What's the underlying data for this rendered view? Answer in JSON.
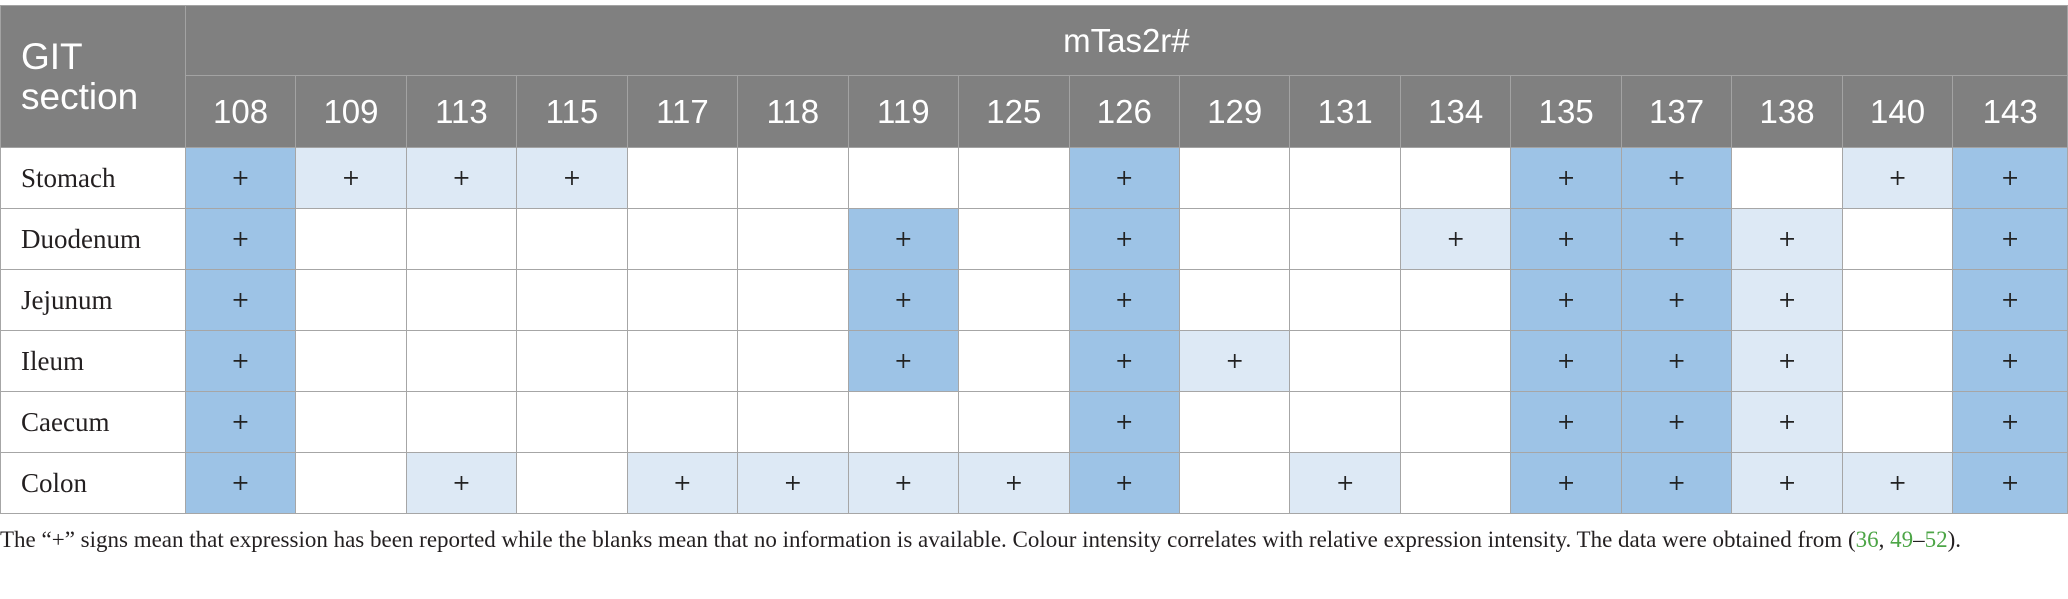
{
  "table": {
    "section_header": "GIT section",
    "group_header": "mTas2r#",
    "genes": [
      "108",
      "109",
      "113",
      "115",
      "117",
      "118",
      "119",
      "125",
      "126",
      "129",
      "131",
      "134",
      "135",
      "137",
      "138",
      "140",
      "143"
    ],
    "legend_colors": {
      "none": "#ffffff",
      "light": "#dde9f5",
      "strong": "#9dc3e6",
      "header": "#808080"
    },
    "rows": [
      {
        "section": "Stomach",
        "cells": [
          {
            "mark": "+",
            "level": 2
          },
          {
            "mark": "+",
            "level": 1
          },
          {
            "mark": "+",
            "level": 1
          },
          {
            "mark": "+",
            "level": 1
          },
          {
            "mark": "",
            "level": 0
          },
          {
            "mark": "",
            "level": 0
          },
          {
            "mark": "",
            "level": 0
          },
          {
            "mark": "",
            "level": 0
          },
          {
            "mark": "+",
            "level": 2
          },
          {
            "mark": "",
            "level": 0
          },
          {
            "mark": "",
            "level": 0
          },
          {
            "mark": "",
            "level": 0
          },
          {
            "mark": "+",
            "level": 2
          },
          {
            "mark": "+",
            "level": 2
          },
          {
            "mark": "",
            "level": 0
          },
          {
            "mark": "+",
            "level": 1
          },
          {
            "mark": "+",
            "level": 2
          }
        ]
      },
      {
        "section": "Duodenum",
        "cells": [
          {
            "mark": "+",
            "level": 2
          },
          {
            "mark": "",
            "level": 0
          },
          {
            "mark": "",
            "level": 0
          },
          {
            "mark": "",
            "level": 0
          },
          {
            "mark": "",
            "level": 0
          },
          {
            "mark": "",
            "level": 0
          },
          {
            "mark": "+",
            "level": 2
          },
          {
            "mark": "",
            "level": 0
          },
          {
            "mark": "+",
            "level": 2
          },
          {
            "mark": "",
            "level": 0
          },
          {
            "mark": "",
            "level": 0
          },
          {
            "mark": "+",
            "level": 1
          },
          {
            "mark": "+",
            "level": 2
          },
          {
            "mark": "+",
            "level": 2
          },
          {
            "mark": "+",
            "level": 1
          },
          {
            "mark": "",
            "level": 0
          },
          {
            "mark": "+",
            "level": 2
          }
        ]
      },
      {
        "section": "Jejunum",
        "cells": [
          {
            "mark": "+",
            "level": 2
          },
          {
            "mark": "",
            "level": 0
          },
          {
            "mark": "",
            "level": 0
          },
          {
            "mark": "",
            "level": 0
          },
          {
            "mark": "",
            "level": 0
          },
          {
            "mark": "",
            "level": 0
          },
          {
            "mark": "+",
            "level": 2
          },
          {
            "mark": "",
            "level": 0
          },
          {
            "mark": "+",
            "level": 2
          },
          {
            "mark": "",
            "level": 0
          },
          {
            "mark": "",
            "level": 0
          },
          {
            "mark": "",
            "level": 0
          },
          {
            "mark": "+",
            "level": 2
          },
          {
            "mark": "+",
            "level": 2
          },
          {
            "mark": "+",
            "level": 1
          },
          {
            "mark": "",
            "level": 0
          },
          {
            "mark": "+",
            "level": 2
          }
        ]
      },
      {
        "section": "Ileum",
        "cells": [
          {
            "mark": "+",
            "level": 2
          },
          {
            "mark": "",
            "level": 0
          },
          {
            "mark": "",
            "level": 0
          },
          {
            "mark": "",
            "level": 0
          },
          {
            "mark": "",
            "level": 0
          },
          {
            "mark": "",
            "level": 0
          },
          {
            "mark": "+",
            "level": 2
          },
          {
            "mark": "",
            "level": 0
          },
          {
            "mark": "+",
            "level": 2
          },
          {
            "mark": "+",
            "level": 1
          },
          {
            "mark": "",
            "level": 0
          },
          {
            "mark": "",
            "level": 0
          },
          {
            "mark": "+",
            "level": 2
          },
          {
            "mark": "+",
            "level": 2
          },
          {
            "mark": "+",
            "level": 1
          },
          {
            "mark": "",
            "level": 0
          },
          {
            "mark": "+",
            "level": 2
          }
        ]
      },
      {
        "section": "Caecum",
        "cells": [
          {
            "mark": "+",
            "level": 2
          },
          {
            "mark": "",
            "level": 0
          },
          {
            "mark": "",
            "level": 0
          },
          {
            "mark": "",
            "level": 0
          },
          {
            "mark": "",
            "level": 0
          },
          {
            "mark": "",
            "level": 0
          },
          {
            "mark": "",
            "level": 0
          },
          {
            "mark": "",
            "level": 0
          },
          {
            "mark": "+",
            "level": 2
          },
          {
            "mark": "",
            "level": 0
          },
          {
            "mark": "",
            "level": 0
          },
          {
            "mark": "",
            "level": 0
          },
          {
            "mark": "+",
            "level": 2
          },
          {
            "mark": "+",
            "level": 2
          },
          {
            "mark": "+",
            "level": 1
          },
          {
            "mark": "",
            "level": 0
          },
          {
            "mark": "+",
            "level": 2
          }
        ]
      },
      {
        "section": "Colon",
        "cells": [
          {
            "mark": "+",
            "level": 2
          },
          {
            "mark": "",
            "level": 0
          },
          {
            "mark": "+",
            "level": 1
          },
          {
            "mark": "",
            "level": 0
          },
          {
            "mark": "+",
            "level": 1
          },
          {
            "mark": "+",
            "level": 1
          },
          {
            "mark": "+",
            "level": 1
          },
          {
            "mark": "+",
            "level": 1
          },
          {
            "mark": "+",
            "level": 2
          },
          {
            "mark": "",
            "level": 0
          },
          {
            "mark": "+",
            "level": 1
          },
          {
            "mark": "",
            "level": 0
          },
          {
            "mark": "+",
            "level": 2
          },
          {
            "mark": "+",
            "level": 2
          },
          {
            "mark": "+",
            "level": 1
          },
          {
            "mark": "+",
            "level": 1
          },
          {
            "mark": "+",
            "level": 2
          }
        ]
      }
    ]
  },
  "footnote": {
    "text_1": "The “+” signs mean that expression has been reported while the blanks mean that no information is available. Colour intensity correlates with relative expression intensity. The data were obtained from (",
    "ref_1": "36",
    "sep_1": ", ",
    "ref_2": "49",
    "dash": "–",
    "ref_3": "52",
    "text_2": ")."
  }
}
